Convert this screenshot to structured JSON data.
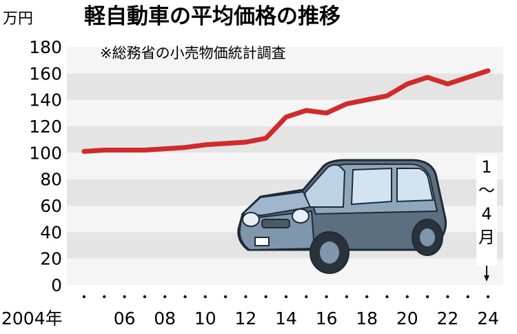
{
  "chart_data": {
    "type": "line",
    "title": "軽自動車の平均価格の推移",
    "subtitle": "※総務省の小売物価統計調査",
    "ylabel": "万円",
    "ylim": [
      0,
      180
    ],
    "yticks": [
      "0",
      "20",
      "40",
      "60",
      "80",
      "100",
      "120",
      "140",
      "160",
      "180"
    ],
    "xtick_labels": [
      "2004年",
      "06",
      "08",
      "10",
      "12",
      "14",
      "16",
      "18",
      "20",
      "22",
      "24"
    ],
    "annotation": "1〜4月",
    "grid": "horizontal bands",
    "line_color": "#d02a2a",
    "x": [
      2004,
      2005,
      2006,
      2007,
      2008,
      2009,
      2010,
      2011,
      2012,
      2013,
      2014,
      2015,
      2016,
      2017,
      2018,
      2019,
      2020,
      2021,
      2022,
      2023,
      2024
    ],
    "series": [
      {
        "values": [
          101,
          102,
          102,
          102,
          103,
          104,
          106,
          107,
          108,
          111,
          127,
          132,
          130,
          137,
          140,
          143,
          152,
          157,
          152,
          157,
          162
        ]
      }
    ]
  }
}
